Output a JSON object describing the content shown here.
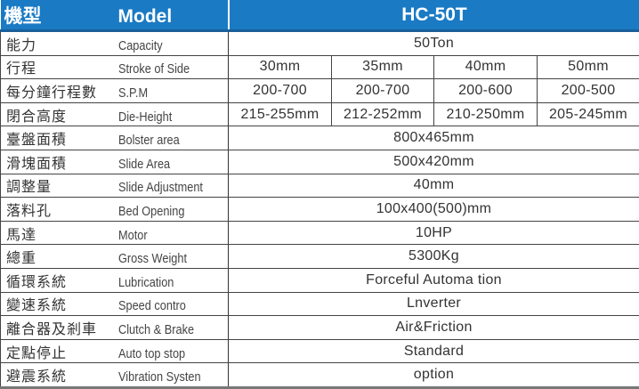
{
  "header": {
    "label_zh": "機型",
    "label_en": "Model",
    "model": "HC-50T"
  },
  "rows": [
    {
      "zh": "能力",
      "en": "Capacity",
      "values": [
        "50Ton"
      ]
    },
    {
      "zh": "行程",
      "en": "Stroke of Side",
      "values": [
        "30mm",
        "35mm",
        "40mm",
        "50mm"
      ]
    },
    {
      "zh": "每分鐘行程數",
      "en": "S.P.M",
      "values": [
        "200-700",
        "200-700",
        "200-600",
        "200-500"
      ]
    },
    {
      "zh": "閉合高度",
      "en": "Die-Height",
      "values": [
        "215-255mm",
        "212-252mm",
        "210-250mm",
        "205-245mm"
      ]
    },
    {
      "zh": "臺盤面積",
      "en": "Bolster area",
      "values": [
        "800x465mm"
      ]
    },
    {
      "zh": "滑塊面積",
      "en": "Slide Area",
      "values": [
        "500x420mm"
      ]
    },
    {
      "zh": "調整量",
      "en": "Slide Adjustment",
      "values": [
        "40mm"
      ]
    },
    {
      "zh": "落料孔",
      "en": "Bed Opening",
      "values": [
        "100x400(500)mm"
      ]
    },
    {
      "zh": "馬達",
      "en": "Motor",
      "values": [
        "10HP"
      ]
    },
    {
      "zh": "總重",
      "en": "Gross Weight",
      "values": [
        "5300Kg"
      ]
    },
    {
      "zh": "循環系統",
      "en": "Lubrication",
      "values": [
        "Forceful Automa tion"
      ]
    },
    {
      "zh": "變速系統",
      "en": "Speed contro",
      "values": [
        "Lnverter"
      ]
    },
    {
      "zh": "離合器及剎車",
      "en": "Clutch & Brake",
      "values": [
        "Air&Friction"
      ]
    },
    {
      "zh": "定點停止",
      "en": "Auto top stop",
      "values": [
        "Standard"
      ]
    },
    {
      "zh": "避震系統",
      "en": "Vibration Systen",
      "values": [
        "option"
      ]
    }
  ],
  "colors": {
    "header_bg": "#1a7ac4",
    "header_text": "#ffffff"
  }
}
